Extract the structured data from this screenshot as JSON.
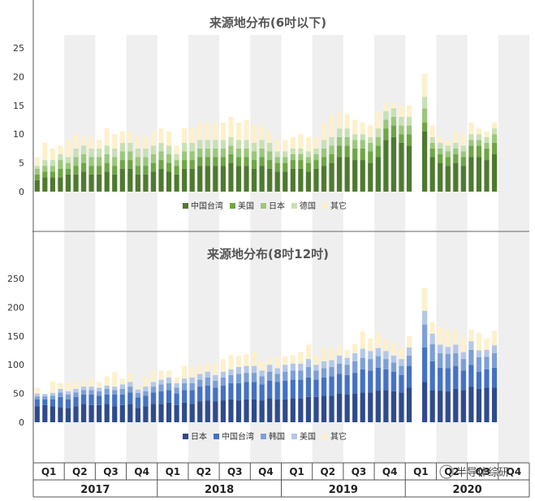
{
  "chart_data": [
    {
      "type": "bar",
      "stacked": true,
      "title": "来源地分布(6吋以下)",
      "ylim": [
        0,
        25
      ],
      "yticks": [
        "0",
        "5",
        "10",
        "15",
        "20",
        "25"
      ],
      "legend_position": "bottom",
      "series": [
        {
          "name": "中国台湾",
          "color": "#4e7a2e",
          "values": [
            2,
            2.5,
            2.5,
            2.5,
            3,
            3,
            3.5,
            3,
            3,
            3.5,
            3,
            4,
            4,
            3,
            3,
            3.5,
            4,
            3.5,
            3,
            4,
            4,
            4.5,
            4.5,
            4.5,
            4.5,
            5,
            4.5,
            4.5,
            4,
            4.5,
            4,
            3.5,
            3.5,
            4,
            4,
            3.5,
            4,
            4.5,
            5,
            6,
            6,
            5.5,
            5.5,
            5,
            6,
            9,
            9.5,
            8.5,
            8,
            null,
            10.5,
            6,
            5,
            4.5,
            5,
            4.5,
            6,
            6,
            5.5,
            6.5
          ]
        },
        {
          "name": "美国",
          "color": "#6fa644",
          "values": [
            1,
            1,
            1,
            1.5,
            1,
            1.5,
            1.5,
            1.5,
            1.5,
            1.5,
            1.5,
            1.5,
            1.5,
            1.5,
            1.5,
            1.5,
            1.5,
            1.5,
            1.5,
            1.5,
            1.5,
            1.5,
            1.5,
            1.5,
            1.5,
            1.5,
            1.5,
            1.5,
            1.5,
            1.5,
            1.5,
            1.5,
            1.5,
            1.5,
            1.5,
            1.5,
            1.5,
            1.5,
            1.5,
            2,
            2,
            2,
            2,
            2,
            2,
            2,
            2,
            1.5,
            2,
            null,
            1.5,
            1.5,
            1.5,
            1.5,
            1.5,
            1.5,
            2,
            2,
            2,
            2
          ]
        },
        {
          "name": "日本",
          "color": "#9cc77b",
          "values": [
            1,
            1,
            1,
            1.5,
            1,
            1.5,
            1.5,
            1.5,
            1.5,
            1.5,
            1.5,
            1.5,
            1.5,
            1.5,
            1.5,
            1.5,
            1.5,
            1.5,
            1,
            1.5,
            1.5,
            1.5,
            1.5,
            1.5,
            1.5,
            1.5,
            1.5,
            1.5,
            1.5,
            1.5,
            1.5,
            1,
            1,
            1,
            1,
            1,
            1,
            1.5,
            1.5,
            1.5,
            1.5,
            1.5,
            1.5,
            1.5,
            1.5,
            1.5,
            1.5,
            1.5,
            1.5,
            null,
            2.5,
            1,
            1,
            1,
            1,
            1,
            1,
            1,
            1,
            1.5
          ]
        },
        {
          "name": "德国",
          "color": "#c9e0b4",
          "values": [
            0.5,
            1,
            1,
            1,
            1,
            1.5,
            1.5,
            1.5,
            1.5,
            1.5,
            1.5,
            1.5,
            1.5,
            1.5,
            1.5,
            1.5,
            1.5,
            1.5,
            1,
            1.5,
            1.5,
            1.5,
            1.5,
            1.5,
            1.5,
            1.5,
            1.5,
            1.5,
            1.5,
            1.5,
            1.5,
            1,
            1,
            1,
            1,
            1,
            1,
            1.5,
            1.5,
            1.5,
            1.5,
            1,
            1,
            1,
            1.5,
            1.5,
            1.5,
            1.5,
            1.5,
            null,
            2,
            1,
            1,
            1,
            1,
            1,
            1,
            1,
            1,
            1
          ]
        },
        {
          "name": "其它",
          "color": "#fdf0cc",
          "values": [
            1.5,
            3,
            2,
            1.5,
            3,
            2.5,
            1.5,
            2,
            1.5,
            3,
            2.5,
            2,
            2,
            2,
            2,
            2.5,
            2.5,
            2.5,
            1.5,
            2.5,
            2.5,
            3,
            3,
            3,
            3,
            3.5,
            3,
            3.5,
            3,
            2.5,
            2,
            2,
            2,
            2,
            2.5,
            2.5,
            2,
            3,
            4,
            3,
            2.5,
            2.5,
            2,
            2,
            3,
            1.5,
            1,
            2,
            2,
            null,
            4,
            2,
            1,
            1,
            2,
            2,
            2,
            1,
            1,
            1
          ]
        }
      ]
    },
    {
      "type": "bar",
      "stacked": true,
      "title": "来源地分布(8吋12吋)",
      "ylim": [
        0,
        250
      ],
      "yticks": [
        "0",
        "50",
        "100",
        "150",
        "200",
        "250"
      ],
      "legend_position": "bottom",
      "series": [
        {
          "name": "日本",
          "color": "#2f4b8c",
          "values": [
            28,
            30,
            28,
            26,
            25,
            28,
            32,
            30,
            30,
            32,
            28,
            30,
            32,
            25,
            28,
            32,
            32,
            34,
            30,
            34,
            32,
            36,
            38,
            36,
            38,
            40,
            38,
            40,
            40,
            38,
            42,
            40,
            40,
            42,
            42,
            44,
            44,
            46,
            46,
            50,
            48,
            50,
            52,
            52,
            55,
            56,
            54,
            52,
            60,
            null,
            70,
            56,
            55,
            54,
            58,
            56,
            62,
            58,
            60,
            60
          ]
        },
        {
          "name": "中国台湾",
          "color": "#4472c4",
          "values": [
            12,
            10,
            12,
            18,
            15,
            16,
            16,
            18,
            16,
            16,
            20,
            18,
            20,
            18,
            18,
            20,
            22,
            22,
            20,
            22,
            24,
            26,
            26,
            24,
            26,
            28,
            30,
            30,
            30,
            28,
            30,
            30,
            32,
            32,
            32,
            34,
            30,
            32,
            34,
            34,
            34,
            36,
            40,
            38,
            40,
            36,
            34,
            30,
            38,
            null,
            60,
            50,
            40,
            40,
            40,
            34,
            38,
            30,
            32,
            35
          ]
        },
        {
          "name": "韩国",
          "color": "#7c9fd6",
          "values": [
            5,
            5,
            6,
            8,
            8,
            8,
            8,
            8,
            8,
            10,
            8,
            10,
            10,
            8,
            8,
            10,
            12,
            12,
            10,
            12,
            12,
            12,
            14,
            12,
            14,
            14,
            16,
            16,
            16,
            14,
            16,
            14,
            16,
            16,
            16,
            18,
            16,
            16,
            16,
            18,
            18,
            20,
            20,
            20,
            20,
            18,
            16,
            16,
            18,
            null,
            40,
            30,
            25,
            25,
            22,
            20,
            26,
            25,
            22,
            25
          ]
        },
        {
          "name": "美国",
          "color": "#b4c7e7",
          "values": [
            5,
            4,
            5,
            6,
            6,
            6,
            6,
            6,
            6,
            6,
            6,
            8,
            8,
            6,
            8,
            8,
            8,
            10,
            8,
            8,
            10,
            10,
            10,
            10,
            10,
            10,
            12,
            12,
            12,
            10,
            12,
            10,
            12,
            12,
            12,
            14,
            10,
            12,
            12,
            14,
            12,
            14,
            16,
            14,
            14,
            14,
            12,
            12,
            14,
            null,
            24,
            18,
            15,
            12,
            15,
            12,
            15,
            12,
            12,
            14
          ]
        },
        {
          "name": "其它",
          "color": "#fdf0cc",
          "values": [
            10,
            0,
            20,
            10,
            15,
            12,
            10,
            15,
            10,
            16,
            25,
            10,
            16,
            5,
            17,
            20,
            16,
            12,
            10,
            22,
            17,
            15,
            15,
            20,
            22,
            25,
            20,
            20,
            25,
            15,
            12,
            20,
            15,
            15,
            20,
            25,
            16,
            22,
            20,
            16,
            14,
            16,
            30,
            22,
            25,
            20,
            22,
            20,
            20,
            null,
            40,
            20,
            30,
            30,
            25,
            25,
            20,
            30,
            20,
            25
          ]
        }
      ]
    }
  ],
  "x_axis": {
    "quarters": [
      "Q1",
      "Q2",
      "Q3",
      "Q4",
      "Q1",
      "Q2",
      "Q3",
      "Q4",
      "Q1",
      "Q2",
      "Q3",
      "Q4",
      "Q1",
      "Q2",
      "Q3",
      "Q4"
    ],
    "years": [
      "2017",
      "2018",
      "2019",
      "2020"
    ]
  },
  "watermark": "半导体综研",
  "colors": {
    "band": "#efeff0",
    "axis": "#555555"
  }
}
